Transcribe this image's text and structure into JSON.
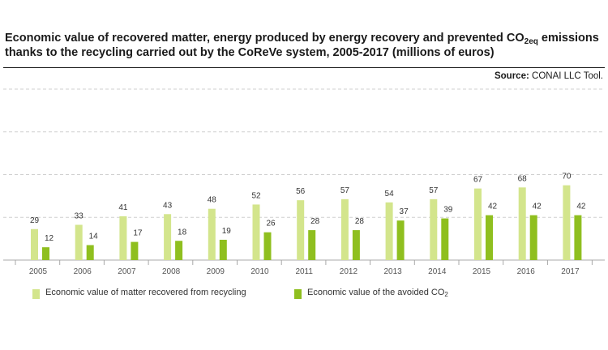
{
  "title": {
    "line1_pre": "Economic value of recovered matter, energy produced by energy recovery and prevented CO",
    "line1_sub": "2eq",
    "line1_post": " emissions",
    "line2": "thanks to the recycling carried out by the CoReVe system, 2005-2017 (millions of euros)"
  },
  "source": {
    "label": "Source:",
    "text": " CONAI LLC Tool."
  },
  "legend": {
    "matter": "Economic value of matter recovered from recycling",
    "co2_pre": "Economic value of the avoided CO",
    "co2_sub": "2"
  },
  "colors": {
    "matter": "#d3e58c",
    "co2": "#8fbf1f",
    "grid": "#cfcfcf",
    "axis": "#a8a8a8",
    "text": "#333333"
  },
  "chart_data": {
    "type": "bar",
    "categories": [
      "2005",
      "2006",
      "2007",
      "2008",
      "2009",
      "2010",
      "2011",
      "2012",
      "2013",
      "2014",
      "2015",
      "2016",
      "2017"
    ],
    "series": [
      {
        "name": "Economic value of matter recovered from recycling",
        "values": [
          29,
          33,
          41,
          43,
          48,
          52,
          56,
          57,
          54,
          57,
          67,
          68,
          70
        ]
      },
      {
        "name": "Economic value of the avoided CO2",
        "values": [
          12,
          14,
          17,
          18,
          19,
          26,
          28,
          28,
          37,
          39,
          42,
          42,
          42
        ]
      }
    ],
    "ylim": [
      0,
      160
    ],
    "gridlines": [
      40,
      80,
      120,
      160
    ],
    "data_labels": true,
    "legend_position": "bottom"
  }
}
